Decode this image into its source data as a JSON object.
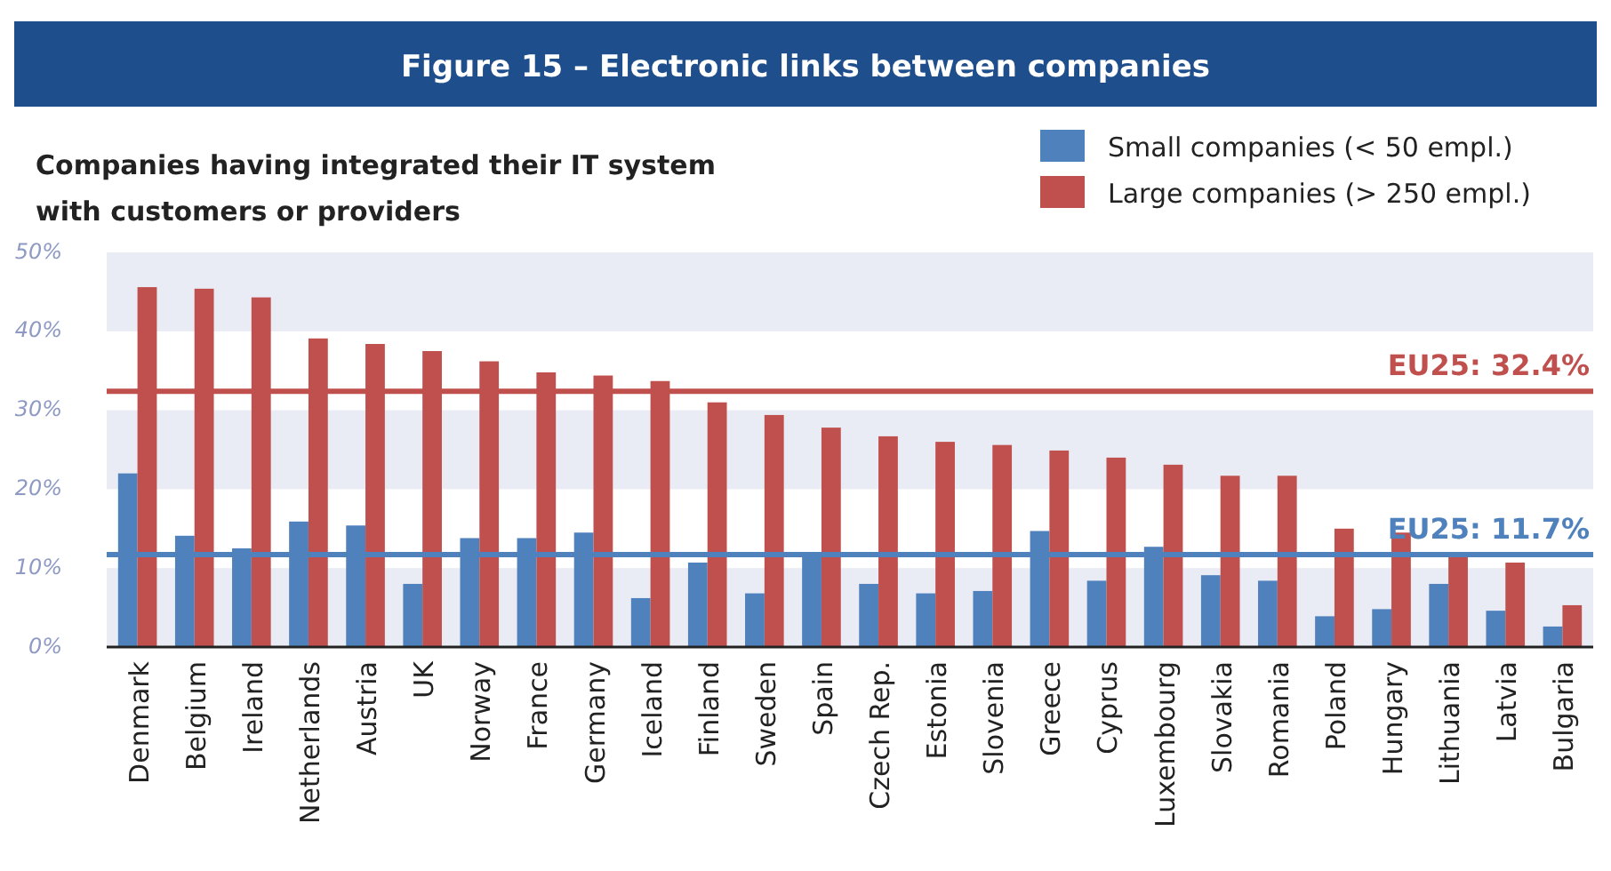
{
  "chart_data": {
    "type": "bar",
    "title": "Figure 15 – Electronic links between companies",
    "subtitle": "Companies having integrated their IT system with customers or providers",
    "categories": [
      "Denmark",
      "Belgium",
      "Ireland",
      "Netherlands",
      "Austria",
      "UK",
      "Norway",
      "France",
      "Germany",
      "Iceland",
      "Finland",
      "Sweden",
      "Spain",
      "Czech Rep.",
      "Estonia",
      "Slovenia",
      "Greece",
      "Cyprus",
      "Luxembourg",
      "Slovakia",
      "Romania",
      "Poland",
      "Hungary",
      "Lithuania",
      "Latvia",
      "Bulgaria"
    ],
    "series": [
      {
        "name": "Small companies (< 50 empl.)",
        "color": "#4f81bd",
        "values": [
          22.0,
          14.1,
          12.5,
          15.9,
          15.4,
          8.0,
          13.8,
          13.8,
          14.5,
          6.2,
          10.7,
          6.8,
          11.6,
          8.0,
          6.8,
          7.1,
          14.7,
          8.4,
          12.7,
          9.1,
          8.4,
          3.9,
          4.8,
          8.0,
          4.6,
          2.6
        ]
      },
      {
        "name": "Large companies (> 250 empl.)",
        "color": "#c0504d",
        "values": [
          45.6,
          45.4,
          44.3,
          39.1,
          38.4,
          37.5,
          36.2,
          34.8,
          34.4,
          33.7,
          31.0,
          29.4,
          27.8,
          26.7,
          26.0,
          25.6,
          24.9,
          24.0,
          23.1,
          21.7,
          21.7,
          15.0,
          14.5,
          11.6,
          10.7,
          5.3
        ]
      }
    ],
    "ylim": [
      0,
      50
    ],
    "yticks": [
      {
        "value": 0,
        "label": "0%"
      },
      {
        "value": 10,
        "label": "10%"
      },
      {
        "value": 20,
        "label": "20%"
      },
      {
        "value": 30,
        "label": "30%"
      },
      {
        "value": 40,
        "label": "40%"
      },
      {
        "value": 50,
        "label": "50%"
      }
    ],
    "bands": [
      {
        "axis": "y",
        "from": 0,
        "to": 10,
        "color": "#e9ecf5"
      },
      {
        "axis": "y",
        "from": 20,
        "to": 30,
        "color": "#e9ecf5"
      },
      {
        "axis": "y",
        "from": 40,
        "to": 50,
        "color": "#e9ecf5"
      }
    ],
    "legend": "top right",
    "ref_lines": [
      {
        "axis": "y",
        "value": 32.4,
        "label": "EU25: 32.4%",
        "color": "#c0504d"
      },
      {
        "axis": "y",
        "value": 11.7,
        "label": "EU25: 11.7%",
        "color": "#4f81bd"
      }
    ]
  }
}
